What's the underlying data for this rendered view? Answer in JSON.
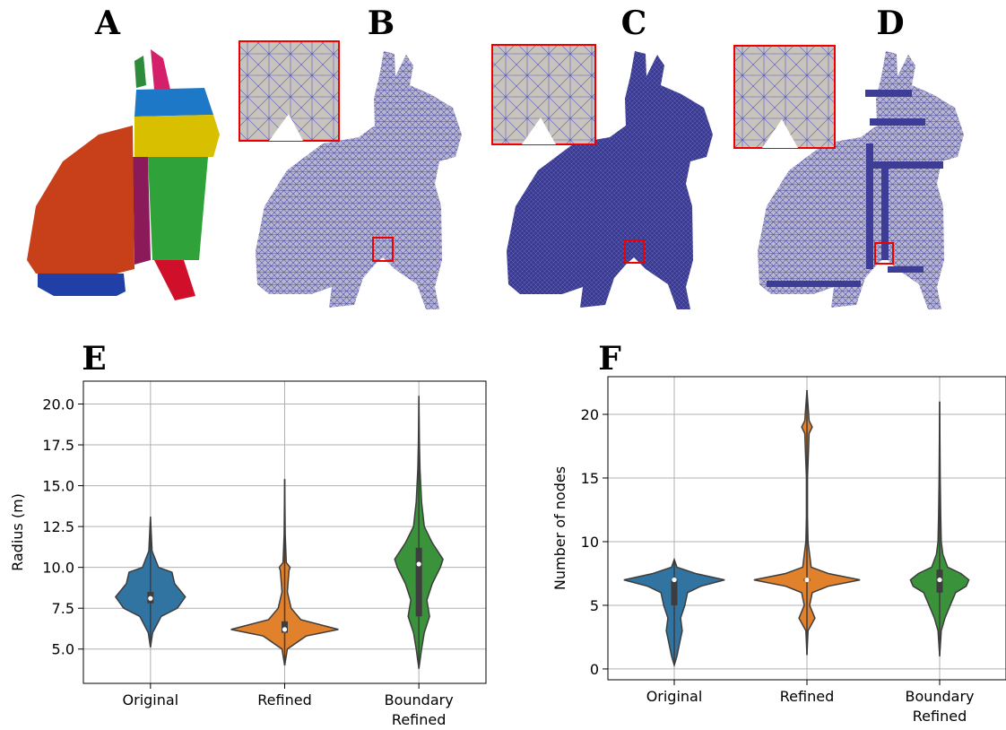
{
  "figure": {
    "panels": [
      "A",
      "B",
      "C",
      "D"
    ]
  },
  "chart_data": [
    {
      "type": "violin",
      "panel_label": "E",
      "ylabel": "Radius (m)",
      "categories": [
        "Original",
        "Refined",
        [
          "Boundary",
          "Refined"
        ]
      ],
      "ylim": [
        2.9,
        21.4
      ],
      "yticks": [
        {
          "value": 5,
          "label": "5.0"
        },
        7.5,
        {
          "value": 10,
          "label": "10.0"
        },
        12.5,
        {
          "value": 15,
          "label": "15.0"
        },
        17.5,
        {
          "value": 20,
          "label": "20.0"
        }
      ],
      "grid": true,
      "violins": [
        {
          "color": "#3274a1",
          "min": 5.1,
          "q1": 7.8,
          "median": 8.1,
          "q3": 8.5,
          "max": 13.1,
          "density_y": [
            5.1,
            6,
            7,
            7.5,
            8.2,
            9,
            9.7,
            10,
            11,
            13.1
          ],
          "density_w": [
            0,
            0.04,
            0.2,
            0.5,
            0.65,
            0.45,
            0.4,
            0.15,
            0.03,
            0
          ]
        },
        {
          "color": "#e1812c",
          "min": 4,
          "q1": 6,
          "median": 6.2,
          "q3": 6.7,
          "max": 15.4,
          "density_y": [
            4,
            5,
            5.8,
            6.2,
            6.8,
            7.5,
            8.5,
            9.8,
            10,
            10.3,
            12,
            15.4
          ],
          "density_w": [
            0,
            0.05,
            0.4,
            1,
            0.3,
            0.12,
            0.05,
            0.08,
            0.1,
            0.03,
            0.01,
            0
          ]
        },
        {
          "color": "#3a923a",
          "min": 3.8,
          "q1": 7,
          "median": 10.2,
          "q3": 11.2,
          "max": 20.5,
          "density_y": [
            3.8,
            5,
            6,
            7,
            8,
            9,
            10,
            10.5,
            11.5,
            12.5,
            14,
            16,
            17.5,
            20.5
          ],
          "density_w": [
            0,
            0.05,
            0.1,
            0.2,
            0.15,
            0.25,
            0.4,
            0.45,
            0.25,
            0.1,
            0.05,
            0.02,
            0.01,
            0
          ]
        }
      ]
    },
    {
      "type": "violin",
      "panel_label": "F",
      "ylabel": "Number of nodes",
      "categories": [
        "Original",
        "Refined",
        [
          "Boundary",
          "Refined"
        ]
      ],
      "ylim": [
        -0.85,
        22.96
      ],
      "yticks": [
        0,
        5,
        10,
        15,
        20
      ],
      "grid": true,
      "violins": [
        {
          "color": "#3274a1",
          "min": 0.3,
          "q1": 5,
          "median": 7,
          "q3": 7,
          "max": 8.6,
          "density_y": [
            0.3,
            1,
            2,
            3,
            4,
            5,
            6,
            6.5,
            7,
            7.5,
            8,
            8.6
          ],
          "density_w": [
            0,
            0.05,
            0.1,
            0.15,
            0.12,
            0.2,
            0.25,
            0.5,
            0.95,
            0.4,
            0.05,
            0
          ]
        },
        {
          "color": "#e1812c",
          "min": 1.1,
          "q1": 6.9,
          "median": 7,
          "q3": 7.1,
          "max": 21.9,
          "density_y": [
            1.1,
            3,
            4,
            5,
            6,
            6.5,
            7,
            7.5,
            8,
            10,
            12,
            15,
            18.5,
            19,
            19.5,
            21.9
          ],
          "density_w": [
            0,
            0.02,
            0.15,
            0.05,
            0.1,
            0.4,
            1,
            0.4,
            0.08,
            0.02,
            0.01,
            0.01,
            0.04,
            0.1,
            0.04,
            0
          ]
        },
        {
          "color": "#3a923a",
          "min": 1,
          "q1": 6,
          "median": 7,
          "q3": 7.8,
          "max": 21,
          "density_y": [
            1,
            3,
            4,
            5,
            6,
            6.5,
            7,
            7.5,
            8,
            9,
            10,
            12,
            15,
            18,
            21
          ],
          "density_w": [
            0,
            0.03,
            0.1,
            0.2,
            0.3,
            0.5,
            0.55,
            0.4,
            0.15,
            0.06,
            0.03,
            0.02,
            0.01,
            0.005,
            0
          ]
        }
      ]
    }
  ]
}
